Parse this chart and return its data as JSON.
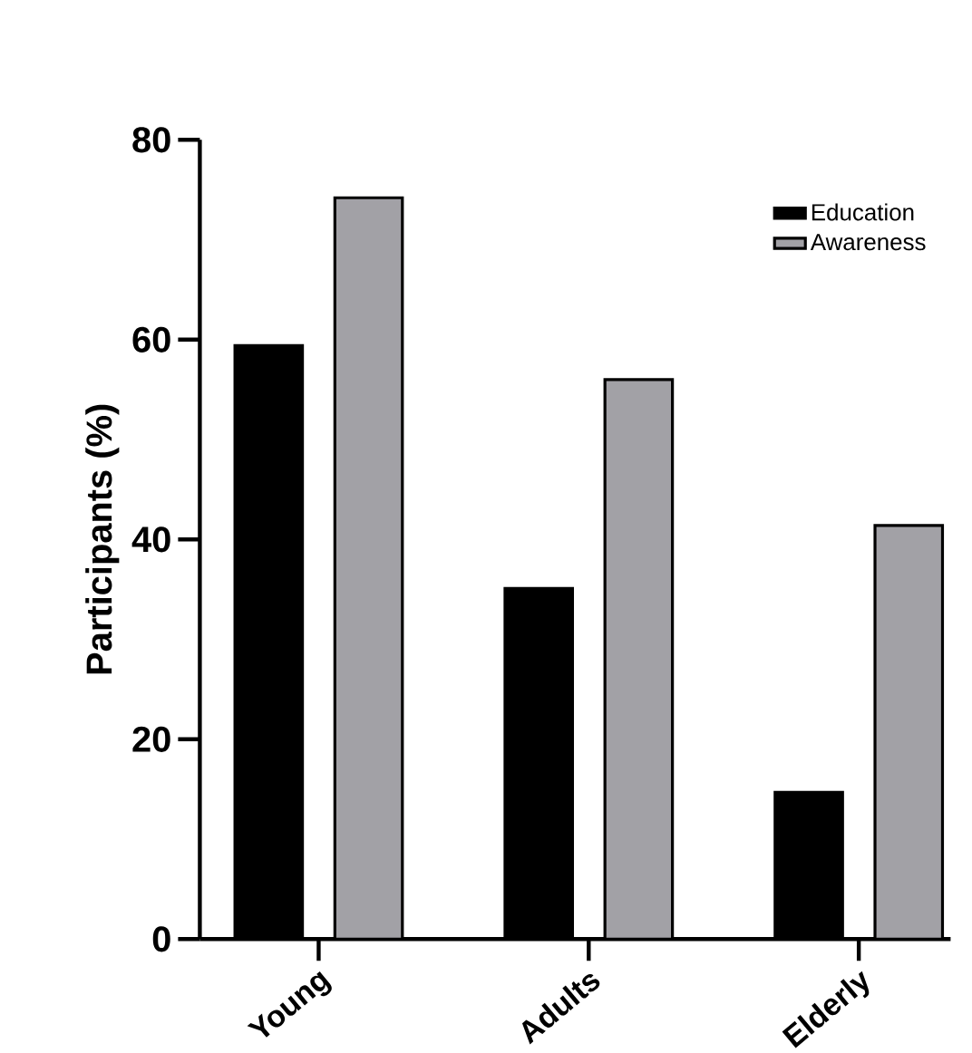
{
  "chart_data": {
    "type": "bar",
    "ylabel": "Participants (%)",
    "categories": [
      "Young",
      "Adults",
      "Elderly"
    ],
    "series": [
      {
        "name": "Education",
        "color": "#000000",
        "values": [
          59.4,
          35.1,
          14.7
        ]
      },
      {
        "name": "Awareness",
        "color": "#a2a1a6",
        "values": [
          74.2,
          56.0,
          41.4
        ]
      }
    ],
    "ylim": [
      0,
      80
    ],
    "yticks": [
      0,
      20,
      40,
      60,
      80
    ],
    "legend": "top right",
    "grid": false
  }
}
